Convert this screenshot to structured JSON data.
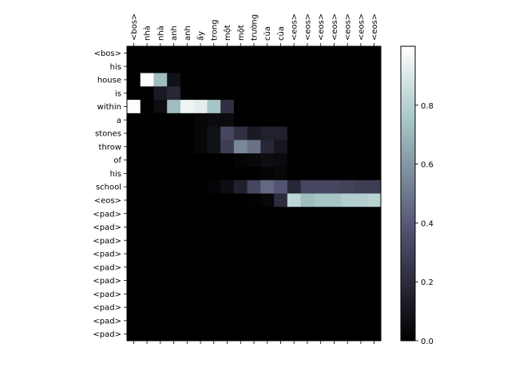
{
  "chart_data": {
    "type": "heatmap",
    "title": "",
    "xlabel": "",
    "ylabel": "",
    "colormap": "bone",
    "x_tick_labels": [
      "<bos>",
      "nhà",
      "nhà",
      "anh",
      "anh",
      "ấy",
      "trong",
      "một",
      "một",
      "trường",
      "của",
      "của",
      "<eos>",
      "<eos>",
      "<eos>",
      "<eos>",
      "<eos>",
      "<eos>",
      "<eos>"
    ],
    "y_tick_labels": [
      "<bos>",
      "his",
      "house",
      "is",
      "within",
      "a",
      "stones",
      "throw",
      "of",
      "his",
      "school",
      "<eos>",
      "<pad>",
      "<pad>",
      "<pad>",
      "<pad>",
      "<pad>",
      "<pad>",
      "<pad>",
      "<pad>",
      "<pad>",
      "<pad>"
    ],
    "values": [
      [
        0,
        0,
        0,
        0,
        0,
        0,
        0,
        0,
        0,
        0,
        0,
        0,
        0,
        0,
        0,
        0,
        0,
        0,
        0
      ],
      [
        0,
        0,
        0,
        0,
        0,
        0,
        0,
        0,
        0,
        0,
        0,
        0,
        0,
        0,
        0,
        0,
        0,
        0,
        0
      ],
      [
        0,
        0.99,
        0.72,
        0.08,
        0,
        0,
        0,
        0,
        0,
        0,
        0,
        0,
        0,
        0,
        0,
        0,
        0,
        0,
        0
      ],
      [
        0,
        0,
        0.12,
        0.18,
        0,
        0,
        0,
        0,
        0,
        0,
        0,
        0,
        0,
        0,
        0,
        0,
        0,
        0,
        0
      ],
      [
        0.99,
        0,
        0.06,
        0.72,
        0.95,
        0.92,
        0.75,
        0.22,
        0,
        0,
        0,
        0,
        0,
        0,
        0,
        0,
        0,
        0,
        0
      ],
      [
        0,
        0,
        0,
        0,
        0,
        0.03,
        0.05,
        0.05,
        0,
        0,
        0,
        0,
        0,
        0,
        0,
        0,
        0,
        0,
        0
      ],
      [
        0,
        0,
        0,
        0,
        0,
        0.03,
        0.08,
        0.32,
        0.22,
        0.12,
        0.15,
        0.15,
        0,
        0,
        0,
        0,
        0,
        0,
        0
      ],
      [
        0,
        0,
        0,
        0,
        0,
        0.03,
        0.08,
        0.28,
        0.55,
        0.48,
        0.18,
        0.1,
        0,
        0,
        0,
        0,
        0,
        0,
        0
      ],
      [
        0,
        0,
        0,
        0,
        0,
        0,
        0,
        0,
        0.02,
        0.04,
        0.06,
        0.05,
        0,
        0,
        0,
        0,
        0,
        0,
        0
      ],
      [
        0,
        0,
        0,
        0,
        0,
        0,
        0,
        0,
        0,
        0,
        0.02,
        0.03,
        0,
        0,
        0,
        0,
        0,
        0,
        0
      ],
      [
        0,
        0,
        0,
        0,
        0,
        0,
        0.02,
        0.06,
        0.15,
        0.32,
        0.45,
        0.38,
        0.18,
        0.32,
        0.32,
        0.32,
        0.3,
        0.28,
        0.28
      ],
      [
        0,
        0,
        0,
        0,
        0,
        0,
        0,
        0,
        0,
        0.01,
        0.03,
        0.2,
        0.82,
        0.72,
        0.75,
        0.75,
        0.78,
        0.78,
        0.8
      ],
      [
        0,
        0,
        0,
        0,
        0,
        0,
        0,
        0,
        0,
        0,
        0,
        0,
        0,
        0,
        0,
        0,
        0,
        0,
        0
      ],
      [
        0,
        0,
        0,
        0,
        0,
        0,
        0,
        0,
        0,
        0,
        0,
        0,
        0,
        0,
        0,
        0,
        0,
        0,
        0
      ],
      [
        0,
        0,
        0,
        0,
        0,
        0,
        0,
        0,
        0,
        0,
        0,
        0,
        0,
        0,
        0,
        0,
        0,
        0,
        0
      ],
      [
        0,
        0,
        0,
        0,
        0,
        0,
        0,
        0,
        0,
        0,
        0,
        0,
        0,
        0,
        0,
        0,
        0,
        0,
        0
      ],
      [
        0,
        0,
        0,
        0,
        0,
        0,
        0,
        0,
        0,
        0,
        0,
        0,
        0,
        0,
        0,
        0,
        0,
        0,
        0
      ],
      [
        0,
        0,
        0,
        0,
        0,
        0,
        0,
        0,
        0,
        0,
        0,
        0,
        0,
        0,
        0,
        0,
        0,
        0,
        0
      ],
      [
        0,
        0,
        0,
        0,
        0,
        0,
        0,
        0,
        0,
        0,
        0,
        0,
        0,
        0,
        0,
        0,
        0,
        0,
        0
      ],
      [
        0,
        0,
        0,
        0,
        0,
        0,
        0,
        0,
        0,
        0,
        0,
        0,
        0,
        0,
        0,
        0,
        0,
        0,
        0
      ],
      [
        0,
        0,
        0,
        0,
        0,
        0,
        0,
        0,
        0,
        0,
        0,
        0,
        0,
        0,
        0,
        0,
        0,
        0,
        0
      ],
      [
        0,
        0,
        0,
        0,
        0,
        0,
        0,
        0,
        0,
        0,
        0,
        0,
        0,
        0,
        0,
        0,
        0,
        0,
        0
      ]
    ],
    "colorbar": {
      "range": [
        0,
        1
      ],
      "ticks": [
        0.0,
        0.2,
        0.4,
        0.6,
        0.8
      ],
      "tick_labels": [
        "0.0",
        "0.2",
        "0.4",
        "0.6",
        "0.8"
      ]
    },
    "grid": false,
    "legend": "none"
  }
}
